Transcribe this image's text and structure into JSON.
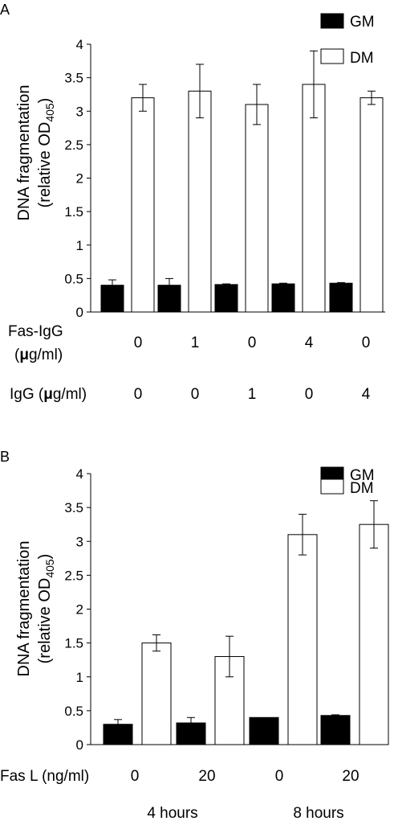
{
  "chart_data": [
    {
      "panel": "A",
      "type": "bar",
      "ylabel_line1": "DNA fragmentation",
      "ylabel_line2_prefix": "(relative OD",
      "ylabel_line2_sub": "405",
      "ylabel_line2_suffix": ")",
      "ylim": [
        0,
        4
      ],
      "yticks": [
        "0",
        "0.5",
        "1",
        "1.5",
        "2",
        "2.5",
        "3",
        "3.5",
        "4"
      ],
      "series": [
        {
          "name": "GM",
          "values": [
            0.4,
            0.4,
            0.41,
            0.42,
            0.43
          ],
          "errors": [
            0.08,
            0.1,
            0.01,
            0.01,
            0.01
          ]
        },
        {
          "name": "DM",
          "values": [
            3.2,
            3.3,
            3.1,
            3.4,
            3.2
          ],
          "errors": [
            0.2,
            0.4,
            0.3,
            0.5,
            0.1
          ]
        }
      ],
      "conditions": [
        {
          "label_line1": "Fas-IgG",
          "label_line2_pre": "(",
          "label_line2_mu": "μ",
          "label_line2_post": "g/ml)",
          "values": [
            "0",
            "1",
            "0",
            "4",
            "0"
          ]
        },
        {
          "label_pre": "IgG (",
          "label_mu": "μ",
          "label_post": "g/ml)",
          "values": [
            "0",
            "0",
            "1",
            "0",
            "4"
          ]
        }
      ]
    },
    {
      "panel": "B",
      "type": "bar",
      "ylabel_line1": "DNA fragmentation",
      "ylabel_line2_prefix": "(relative OD",
      "ylabel_line2_sub": "405",
      "ylabel_line2_suffix": ")",
      "ylim": [
        0,
        4
      ],
      "yticks": [
        "0",
        "0.5",
        "1",
        "1.5",
        "2",
        "2.5",
        "3",
        "3.5",
        "4"
      ],
      "series": [
        {
          "name": "GM",
          "values": [
            0.3,
            0.32,
            0.4,
            0.43
          ],
          "errors": [
            0.07,
            0.08,
            0.0,
            0.01
          ]
        },
        {
          "name": "DM",
          "values": [
            1.5,
            1.3,
            3.1,
            3.25
          ],
          "errors": [
            0.12,
            0.3,
            0.3,
            0.35
          ]
        }
      ],
      "conditions": [
        {
          "label": "Fas L (ng/ml)",
          "values": [
            "0",
            "20",
            "0",
            "20"
          ]
        }
      ],
      "time_labels": [
        "4 hours",
        "8 hours"
      ]
    }
  ]
}
